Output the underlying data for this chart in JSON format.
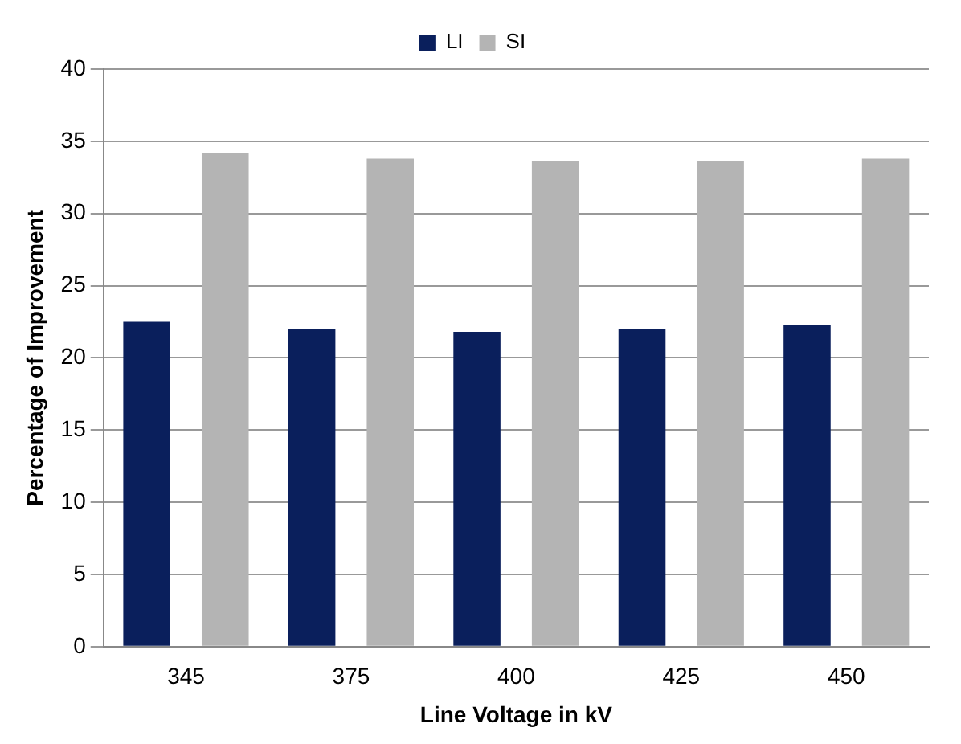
{
  "chart_data": {
    "type": "bar",
    "xlabel": "Line Voltage in kV",
    "ylabel": "Percentage of Improvement",
    "categories": [
      "345",
      "375",
      "400",
      "425",
      "450"
    ],
    "series": [
      {
        "name": "LI",
        "color": "#0a1f5c",
        "values": [
          22.5,
          22.0,
          21.8,
          22.0,
          22.3
        ]
      },
      {
        "name": "SI",
        "color": "#b4b4b4",
        "values": [
          34.2,
          33.8,
          33.6,
          33.6,
          33.8
        ]
      }
    ],
    "ylim": [
      0,
      40
    ],
    "yticks": [
      0,
      5,
      10,
      15,
      20,
      25,
      30,
      35,
      40
    ],
    "grid": "y",
    "legend": "top"
  }
}
